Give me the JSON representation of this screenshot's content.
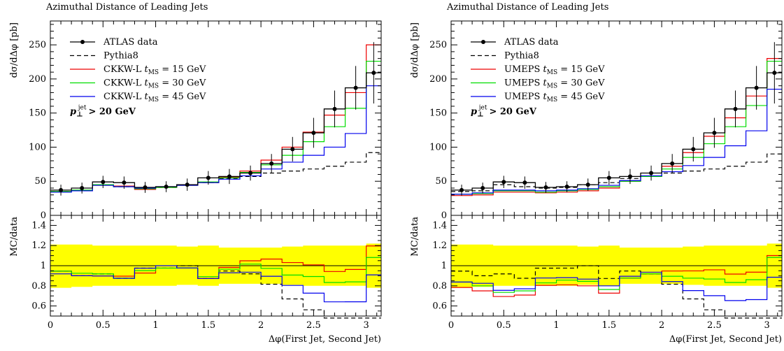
{
  "chart_data": [
    {
      "type": "line",
      "title": "Azimuthal Distance of Leading Jets",
      "xlabel": "Δφ(First Jet, Second Jet)",
      "ylabel": "dσ/dΔφ [pb]",
      "ratio_ylabel": "MC/data",
      "cut_label": "p⊥jet > 20 GeV",
      "xlim": [
        0,
        3.14159
      ],
      "ylim": [
        0,
        285
      ],
      "ratio_ylim": [
        0.5,
        1.5
      ],
      "x_ticks": [
        "0",
        "0.5",
        "1",
        "1.5",
        "2",
        "2.5",
        "3"
      ],
      "y_ticks": [
        "0",
        "50",
        "100",
        "150",
        "200",
        "250"
      ],
      "ratio_ticks": [
        "0.6",
        "0.8",
        "1",
        "1.2",
        "1.4"
      ],
      "bin_edges": [
        0,
        0.2,
        0.4,
        0.6,
        0.8,
        1.0,
        1.2,
        1.4,
        1.6,
        1.8,
        2.0,
        2.2,
        2.4,
        2.6,
        2.8,
        3.0,
        3.14159
      ],
      "data": {
        "name": "ATLAS data",
        "values": [
          37,
          40,
          49,
          48,
          41,
          42,
          45,
          55,
          57,
          62,
          76,
          97,
          121,
          156,
          187,
          209
        ],
        "errors": [
          8,
          8,
          9,
          9,
          8,
          8,
          9,
          10,
          11,
          11,
          14,
          18,
          22,
          27,
          32,
          45
        ]
      },
      "band": {
        "color": "#ffff00",
        "lower": [
          0.78,
          0.79,
          0.8,
          0.8,
          0.8,
          0.8,
          0.81,
          0.8,
          0.82,
          0.82,
          0.82,
          0.81,
          0.8,
          0.8,
          0.8,
          0.78
        ],
        "upper": [
          1.21,
          1.21,
          1.2,
          1.2,
          1.2,
          1.2,
          1.19,
          1.2,
          1.18,
          1.18,
          1.18,
          1.19,
          1.2,
          1.2,
          1.2,
          1.22
        ]
      },
      "series": [
        {
          "name": "Pythia8",
          "color": "#000000",
          "dash": true,
          "values": [
            35,
            36,
            45,
            42,
            40,
            41,
            45,
            48,
            54,
            57,
            62,
            65,
            68,
            72,
            78,
            92
          ]
        },
        {
          "name": "CKKW-L t_MS = 15 GeV",
          "label_main": "CKKW-L ",
          "label_sub": "MS",
          "label_tail": " = 15 GeV",
          "color": "#ee0000",
          "dash": false,
          "values": [
            35,
            36,
            44,
            43,
            38,
            41,
            44,
            48,
            56,
            65,
            81,
            100,
            122,
            147,
            180,
            250
          ]
        },
        {
          "name": "CKKW-L t_MS = 30 GeV",
          "label_main": "CKKW-L ",
          "label_sub": "MS",
          "label_tail": " = 30 GeV",
          "color": "#00dd00",
          "dash": false,
          "values": [
            35,
            37,
            45,
            42,
            39,
            41,
            44,
            49,
            55,
            63,
            74,
            88,
            108,
            130,
            157,
            226
          ]
        },
        {
          "name": "CKKW-L t_MS = 45 GeV",
          "label_main": "CKKW-L ",
          "label_sub": "MS",
          "label_tail": " = 45 GeV",
          "color": "#0000ee",
          "dash": false,
          "values": [
            34,
            36,
            44,
            42,
            40,
            42,
            44,
            48,
            53,
            58,
            68,
            78,
            88,
            100,
            120,
            190
          ]
        }
      ]
    },
    {
      "type": "line",
      "title": "Azimuthal Distance of Leading Jets",
      "xlabel": "Δφ(First Jet, Second Jet)",
      "ylabel": "dσ/dΔφ [pb]",
      "ratio_ylabel": "MC/data",
      "cut_label": "p⊥jet > 20 GeV",
      "xlim": [
        0,
        3.14159
      ],
      "ylim": [
        0,
        285
      ],
      "ratio_ylim": [
        0.5,
        1.5
      ],
      "x_ticks": [
        "0",
        "0.5",
        "1",
        "1.5",
        "2",
        "2.5",
        "3"
      ],
      "y_ticks": [
        "0",
        "50",
        "100",
        "150",
        "200",
        "250"
      ],
      "ratio_ticks": [
        "0.6",
        "0.8",
        "1",
        "1.2",
        "1.4"
      ],
      "bin_edges": [
        0,
        0.2,
        0.4,
        0.6,
        0.8,
        1.0,
        1.2,
        1.4,
        1.6,
        1.8,
        2.0,
        2.2,
        2.4,
        2.6,
        2.8,
        3.0,
        3.14159
      ],
      "data": {
        "name": "ATLAS data",
        "values": [
          37,
          40,
          49,
          48,
          41,
          42,
          45,
          55,
          57,
          62,
          76,
          97,
          121,
          156,
          187,
          209
        ],
        "errors": [
          8,
          8,
          9,
          9,
          8,
          8,
          9,
          10,
          11,
          11,
          14,
          18,
          22,
          27,
          32,
          45
        ]
      },
      "band": {
        "color": "#ffff00",
        "lower": [
          0.78,
          0.79,
          0.8,
          0.8,
          0.8,
          0.8,
          0.81,
          0.8,
          0.82,
          0.82,
          0.82,
          0.81,
          0.8,
          0.8,
          0.8,
          0.78
        ],
        "upper": [
          1.21,
          1.21,
          1.2,
          1.2,
          1.2,
          1.2,
          1.19,
          1.2,
          1.18,
          1.18,
          1.18,
          1.19,
          1.2,
          1.2,
          1.2,
          1.22
        ]
      },
      "series": [
        {
          "name": "Pythia8",
          "color": "#000000",
          "dash": true,
          "values": [
            35,
            36,
            45,
            42,
            40,
            41,
            45,
            48,
            54,
            57,
            62,
            65,
            68,
            72,
            78,
            90
          ]
        },
        {
          "name": "UMEPS t_MS = 15 GeV",
          "label_main": "UMEPS ",
          "label_sub": "MS",
          "label_tail": " = 15 GeV",
          "color": "#ee0000",
          "dash": false,
          "values": [
            29,
            30,
            34,
            34,
            33,
            34,
            36,
            40,
            50,
            57,
            72,
            92,
            116,
            143,
            175,
            230
          ]
        },
        {
          "name": "UMEPS t_MS = 30 GeV",
          "label_main": "UMEPS ",
          "label_sub": "MS",
          "label_tail": " = 30 GeV",
          "color": "#00dd00",
          "dash": false,
          "values": [
            31,
            32,
            36,
            36,
            34,
            36,
            38,
            42,
            50,
            57,
            68,
            85,
            105,
            130,
            161,
            226
          ]
        },
        {
          "name": "UMEPS t_MS = 45 GeV",
          "label_main": "UMEPS ",
          "label_sub": "MS",
          "label_tail": " = 45 GeV",
          "color": "#0000ee",
          "dash": false,
          "values": [
            31,
            33,
            37,
            37,
            36,
            37,
            39,
            44,
            51,
            58,
            64,
            73,
            85,
            102,
            124,
            185
          ]
        }
      ]
    }
  ]
}
